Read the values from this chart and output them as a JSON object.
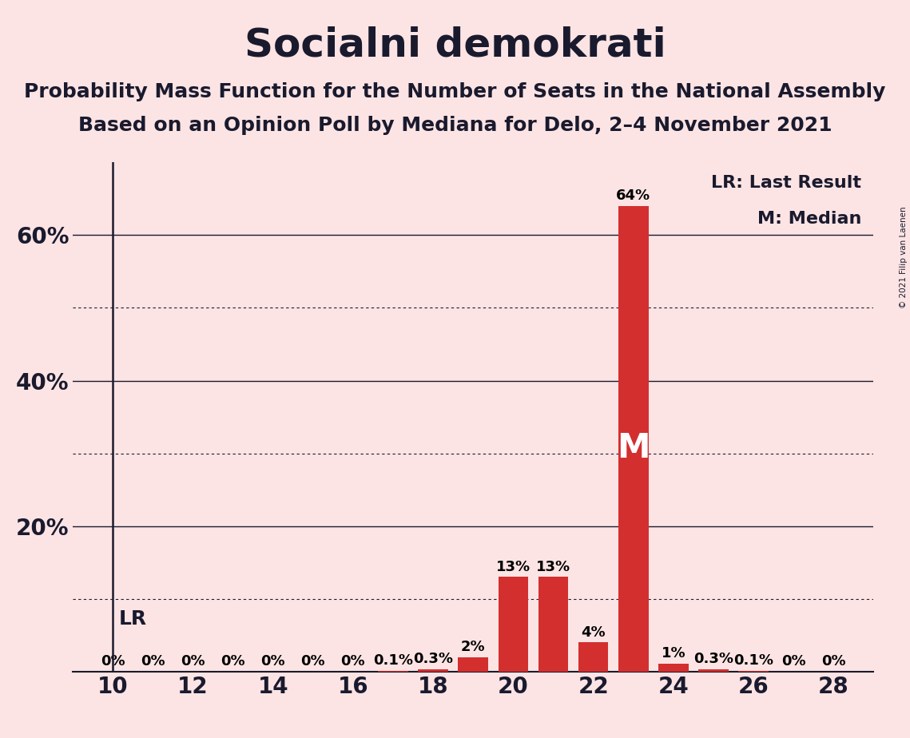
{
  "title": "Socialni demokrati",
  "subtitle1": "Probability Mass Function for the Number of Seats in the National Assembly",
  "subtitle2": "Based on an Opinion Poll by Mediana for Delo, 2–4 November 2021",
  "copyright": "© 2021 Filip van Laenen",
  "seats": [
    10,
    11,
    12,
    13,
    14,
    15,
    16,
    17,
    18,
    19,
    20,
    21,
    22,
    23,
    24,
    25,
    26,
    27,
    28
  ],
  "probabilities": [
    0.0,
    0.0,
    0.0,
    0.0,
    0.0,
    0.0,
    0.0,
    0.1,
    0.3,
    2.0,
    13.0,
    13.0,
    4.0,
    64.0,
    1.1,
    0.3,
    0.1,
    0.0,
    0.0
  ],
  "bar_color": "#d32f2f",
  "background_color": "#fce4e4",
  "median_seat": 23,
  "lr_seat": 10,
  "lr_label": "LR",
  "median_label": "M",
  "legend_lr": "LR: Last Result",
  "legend_m": "M: Median",
  "ylim": [
    0,
    70
  ],
  "solid_yticks": [
    0,
    20,
    40,
    60
  ],
  "dotted_yticks": [
    10,
    30,
    50
  ],
  "xlim": [
    9,
    29
  ],
  "xticks": [
    10,
    12,
    14,
    16,
    18,
    20,
    22,
    24,
    26,
    28
  ],
  "title_fontsize": 36,
  "subtitle_fontsize": 18,
  "bar_label_fontsize": 13,
  "axis_label_fontsize": 20,
  "median_fontsize": 30,
  "lr_fontsize": 18,
  "legend_fontsize": 16
}
